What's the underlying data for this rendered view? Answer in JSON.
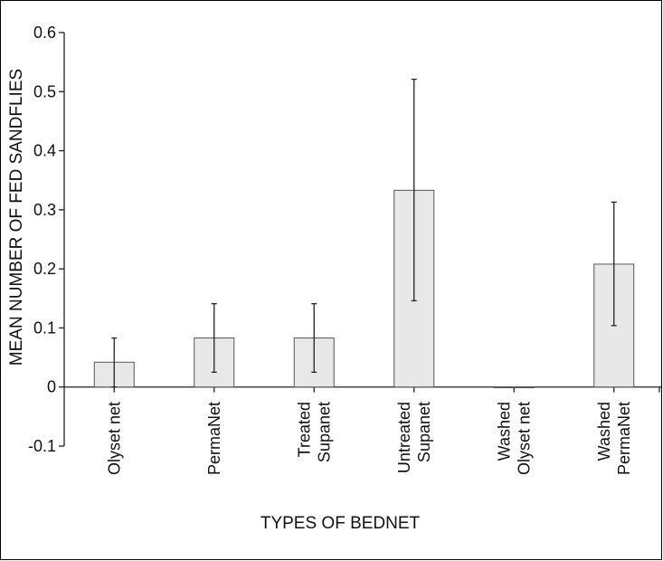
{
  "chart_data": {
    "type": "bar",
    "title": "",
    "xlabel": "TYPES OF BEDNET",
    "ylabel": "MEAN NUMBER OF FED SANDFLIES",
    "ylim": [
      -0.1,
      0.6
    ],
    "yticks": [
      -0.1,
      0,
      0.1,
      0.2,
      0.3,
      0.4,
      0.5,
      0.6
    ],
    "ytick_labels": [
      "-0.1",
      "0",
      "0.1",
      "0.2",
      "0.3",
      "0.4",
      "0.5",
      "0.6"
    ],
    "grid": false,
    "legend": "none",
    "categories": [
      [
        "Olyset net"
      ],
      [
        "PermaNet"
      ],
      [
        "Treated",
        "Supanet"
      ],
      [
        "Untreated",
        "Supanet"
      ],
      [
        "Washed",
        "Olyset net"
      ],
      [
        "Washed",
        "PermaNet"
      ]
    ],
    "values": [
      0.042,
      0.083,
      0.083,
      0.333,
      0.0,
      0.208
    ],
    "error_low": [
      0.0,
      0.025,
      0.025,
      0.146,
      0.0,
      0.104
    ],
    "error_high": [
      0.083,
      0.141,
      0.141,
      0.521,
      0.0,
      0.313
    ],
    "colors": {
      "bar_fill": "#e8e8e8",
      "bar_stroke": "#555555",
      "axis": "#222222",
      "error_bar": "#222222",
      "frame": "#000000"
    }
  }
}
